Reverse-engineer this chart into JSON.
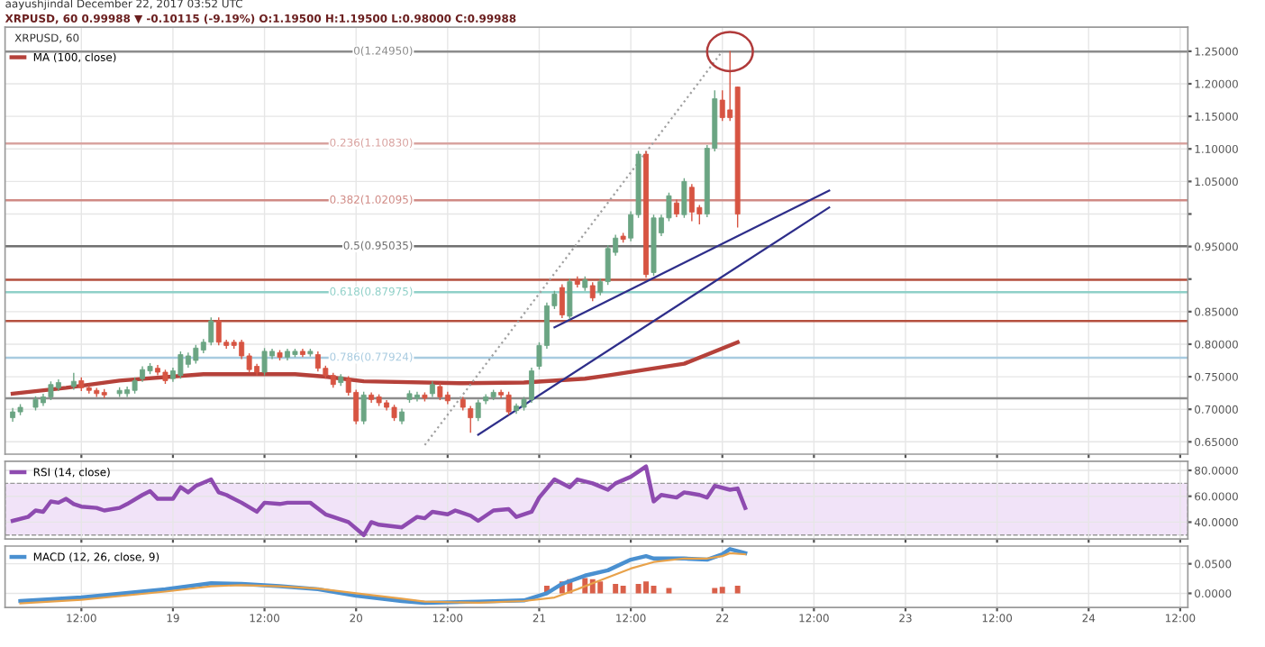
{
  "chart_data": [
    {
      "type": "candlestick",
      "title": "XRPUSD, 60 0.99988 ▼ -0.10115 (-9.19%) O:1.19500 H:1.19500 L:0.98000 C:0.99988",
      "subtitle": "aayushjindal December 22, 2017 03:52 UTC",
      "annotations": [
        "XRPUSD, 60"
      ],
      "x": [
        "2017-12-18T03:00",
        "2017-12-18T04:00",
        "2017-12-18T06:00",
        "2017-12-18T07:00",
        "2017-12-18T08:00",
        "2017-12-18T09:00",
        "2017-12-18T11:00",
        "2017-12-18T12:00",
        "2017-12-18T13:00",
        "2017-12-18T14:00",
        "2017-12-18T15:00",
        "2017-12-18T17:00",
        "2017-12-18T18:00",
        "2017-12-18T19:00",
        "2017-12-18T20:00",
        "2017-12-18T21:00",
        "2017-12-18T22:00",
        "2017-12-18T23:00",
        "2017-12-19T00:00",
        "2017-12-19T01:00",
        "2017-12-19T02:00",
        "2017-12-19T03:00",
        "2017-12-19T04:00",
        "2017-12-19T05:00",
        "2017-12-19T06:00",
        "2017-12-19T07:00",
        "2017-12-19T08:00",
        "2017-12-19T09:00",
        "2017-12-19T10:00",
        "2017-12-19T11:00",
        "2017-12-19T12:00",
        "2017-12-19T13:00",
        "2017-12-19T14:00",
        "2017-12-19T15:00",
        "2017-12-19T16:00",
        "2017-12-19T17:00",
        "2017-12-19T18:00",
        "2017-12-19T19:00",
        "2017-12-19T20:00",
        "2017-12-19T21:00",
        "2017-12-19T22:00",
        "2017-12-19T23:00",
        "2017-12-20T00:00",
        "2017-12-20T01:00",
        "2017-12-20T02:00",
        "2017-12-20T03:00",
        "2017-12-20T04:00",
        "2017-12-20T05:00",
        "2017-12-20T06:00",
        "2017-12-20T07:00",
        "2017-12-20T08:00",
        "2017-12-20T09:00",
        "2017-12-20T10:00",
        "2017-12-20T11:00",
        "2017-12-20T12:00",
        "2017-12-20T14:00",
        "2017-12-20T15:00",
        "2017-12-20T16:00",
        "2017-12-20T17:00",
        "2017-12-20T18:00",
        "2017-12-20T19:00",
        "2017-12-20T20:00",
        "2017-12-20T21:00",
        "2017-12-20T22:00",
        "2017-12-20T23:00",
        "2017-12-21T00:00",
        "2017-12-21T01:00",
        "2017-12-21T02:00",
        "2017-12-21T03:00",
        "2017-12-21T04:00",
        "2017-12-21T05:00",
        "2017-12-21T06:00",
        "2017-12-21T07:00",
        "2017-12-21T08:00",
        "2017-12-21T09:00",
        "2017-12-21T10:00",
        "2017-12-21T11:00",
        "2017-12-21T12:00",
        "2017-12-21T13:00",
        "2017-12-21T14:00",
        "2017-12-21T15:00",
        "2017-12-21T16:00",
        "2017-12-21T17:00",
        "2017-12-21T18:00",
        "2017-12-21T19:00",
        "2017-12-21T20:00",
        "2017-12-21T21:00",
        "2017-12-21T22:00",
        "2017-12-21T23:00",
        "2017-12-22T00:00",
        "2017-12-22T01:00",
        "2017-12-22T02:00"
      ],
      "ohlc": [
        [
          0.687,
          0.701,
          0.682,
          0.696
        ],
        [
          0.696,
          0.707,
          0.692,
          0.703
        ],
        [
          0.703,
          0.719,
          0.699,
          0.715
        ],
        [
          0.71,
          0.723,
          0.706,
          0.719
        ],
        [
          0.719,
          0.742,
          0.715,
          0.738
        ],
        [
          0.733,
          0.745,
          0.729,
          0.741
        ],
        [
          0.735,
          0.755,
          0.731,
          0.743
        ],
        [
          0.744,
          0.748,
          0.729,
          0.733
        ],
        [
          0.733,
          0.736,
          0.725,
          0.729
        ],
        [
          0.729,
          0.732,
          0.72,
          0.724
        ],
        [
          0.726,
          0.73,
          0.718,
          0.722
        ],
        [
          0.724,
          0.733,
          0.72,
          0.729
        ],
        [
          0.724,
          0.734,
          0.72,
          0.73
        ],
        [
          0.729,
          0.748,
          0.725,
          0.744
        ],
        [
          0.747,
          0.765,
          0.743,
          0.761
        ],
        [
          0.759,
          0.77,
          0.755,
          0.766
        ],
        [
          0.763,
          0.767,
          0.753,
          0.757
        ],
        [
          0.757,
          0.76,
          0.74,
          0.744
        ],
        [
          0.747,
          0.763,
          0.743,
          0.759
        ],
        [
          0.752,
          0.788,
          0.748,
          0.784
        ],
        [
          0.769,
          0.786,
          0.765,
          0.782
        ],
        [
          0.775,
          0.798,
          0.771,
          0.794
        ],
        [
          0.791,
          0.807,
          0.787,
          0.803
        ],
        [
          0.803,
          0.84,
          0.799,
          0.836
        ],
        [
          0.836,
          0.84,
          0.799,
          0.803
        ],
        [
          0.803,
          0.806,
          0.794,
          0.798
        ],
        [
          0.803,
          0.806,
          0.794,
          0.798
        ],
        [
          0.803,
          0.806,
          0.778,
          0.782
        ],
        [
          0.782,
          0.785,
          0.757,
          0.761
        ],
        [
          0.766,
          0.769,
          0.753,
          0.757
        ],
        [
          0.757,
          0.793,
          0.753,
          0.789
        ],
        [
          0.782,
          0.792,
          0.778,
          0.789
        ],
        [
          0.787,
          0.79,
          0.776,
          0.78
        ],
        [
          0.78,
          0.792,
          0.776,
          0.789
        ],
        [
          0.784,
          0.792,
          0.781,
          0.789
        ],
        [
          0.789,
          0.792,
          0.781,
          0.784
        ],
        [
          0.785,
          0.792,
          0.782,
          0.789
        ],
        [
          0.784,
          0.788,
          0.759,
          0.763
        ],
        [
          0.763,
          0.766,
          0.748,
          0.752
        ],
        [
          0.752,
          0.755,
          0.734,
          0.738
        ],
        [
          0.741,
          0.753,
          0.737,
          0.75
        ],
        [
          0.747,
          0.75,
          0.722,
          0.726
        ],
        [
          0.726,
          0.729,
          0.678,
          0.682
        ],
        [
          0.682,
          0.726,
          0.678,
          0.722
        ],
        [
          0.722,
          0.725,
          0.711,
          0.715
        ],
        [
          0.719,
          0.722,
          0.706,
          0.71
        ],
        [
          0.71,
          0.713,
          0.699,
          0.703
        ],
        [
          0.703,
          0.706,
          0.683,
          0.687
        ],
        [
          0.682,
          0.7,
          0.678,
          0.696
        ],
        [
          0.715,
          0.728,
          0.711,
          0.724
        ],
        [
          0.717,
          0.726,
          0.713,
          0.722
        ],
        [
          0.722,
          0.725,
          0.713,
          0.717
        ],
        [
          0.724,
          0.742,
          0.72,
          0.738
        ],
        [
          0.735,
          0.739,
          0.715,
          0.719
        ],
        [
          0.722,
          0.726,
          0.709,
          0.713
        ],
        [
          0.715,
          0.718,
          0.699,
          0.703
        ],
        [
          0.701,
          0.704,
          0.665,
          0.687
        ],
        [
          0.687,
          0.714,
          0.683,
          0.71
        ],
        [
          0.713,
          0.722,
          0.709,
          0.719
        ],
        [
          0.719,
          0.729,
          0.715,
          0.726
        ],
        [
          0.726,
          0.729,
          0.718,
          0.722
        ],
        [
          0.722,
          0.726,
          0.692,
          0.696
        ],
        [
          0.698,
          0.708,
          0.694,
          0.705
        ],
        [
          0.703,
          0.718,
          0.699,
          0.715
        ],
        [
          0.715,
          0.763,
          0.711,
          0.759
        ],
        [
          0.766,
          0.802,
          0.762,
          0.798
        ],
        [
          0.798,
          0.863,
          0.794,
          0.859
        ],
        [
          0.859,
          0.881,
          0.855,
          0.877
        ],
        [
          0.887,
          0.891,
          0.841,
          0.845
        ],
        [
          0.843,
          0.9,
          0.839,
          0.896
        ],
        [
          0.899,
          0.903,
          0.888,
          0.892
        ],
        [
          0.887,
          0.903,
          0.883,
          0.899
        ],
        [
          0.89,
          0.894,
          0.867,
          0.871
        ],
        [
          0.88,
          0.9,
          0.876,
          0.896
        ],
        [
          0.896,
          0.951,
          0.892,
          0.947
        ],
        [
          0.941,
          0.967,
          0.937,
          0.963
        ],
        [
          0.966,
          0.97,
          0.957,
          0.961
        ],
        [
          0.963,
          1.003,
          0.959,
          0.999
        ],
        [
          0.999,
          1.096,
          0.995,
          1.092
        ],
        [
          1.092,
          1.096,
          0.903,
          0.907
        ],
        [
          0.91,
          0.998,
          0.906,
          0.994
        ],
        [
          0.971,
          0.998,
          0.967,
          0.994
        ],
        [
          0.994,
          1.032,
          0.99,
          1.028
        ],
        [
          1.017,
          1.021,
          0.996,
          1.0
        ],
        [
          0.999,
          1.054,
          0.995,
          1.05
        ],
        [
          1.041,
          1.045,
          0.99,
          1.003
        ],
        [
          1.01,
          1.013,
          0.985,
          1.0
        ],
        [
          1.0,
          1.105,
          0.996,
          1.101
        ],
        [
          1.101,
          1.189,
          1.097,
          1.177
        ],
        [
          1.175,
          1.189,
          1.144,
          1.148
        ],
        [
          1.16,
          1.2495,
          1.144,
          1.148
        ],
        [
          1.195,
          1.195,
          0.98,
          0.99988
        ]
      ],
      "colors": [
        "#6ba583",
        "#6ba583",
        "#6ba583",
        "#6ba583",
        "#6ba583",
        "#6ba583",
        "#6ba583",
        "#d75442",
        "#d75442",
        "#d75442",
        "#d75442",
        "#6ba583",
        "#6ba583",
        "#6ba583",
        "#6ba583",
        "#6ba583",
        "#d75442",
        "#d75442",
        "#6ba583",
        "#6ba583",
        "#6ba583",
        "#6ba583",
        "#6ba583",
        "#6ba583",
        "#d75442",
        "#d75442",
        "#d75442",
        "#d75442",
        "#d75442",
        "#d75442",
        "#6ba583",
        "#6ba583",
        "#d75442",
        "#6ba583",
        "#6ba583",
        "#d75442",
        "#6ba583",
        "#d75442",
        "#d75442",
        "#d75442",
        "#6ba583",
        "#d75442",
        "#d75442",
        "#6ba583",
        "#d75442",
        "#d75442",
        "#d75442",
        "#d75442",
        "#6ba583",
        "#6ba583",
        "#6ba583",
        "#d75442",
        "#6ba583",
        "#d75442",
        "#d75442",
        "#d75442",
        "#d75442",
        "#6ba583",
        "#6ba583",
        "#6ba583",
        "#d75442",
        "#d75442",
        "#6ba583",
        "#6ba583",
        "#6ba583",
        "#6ba583",
        "#6ba583",
        "#6ba583",
        "#d75442",
        "#6ba583",
        "#d75442",
        "#6ba583",
        "#d75442",
        "#6ba583",
        "#6ba583",
        "#6ba583",
        "#d75442",
        "#6ba583",
        "#6ba583",
        "#d75442",
        "#6ba583",
        "#6ba583",
        "#6ba583",
        "#d75442",
        "#6ba583",
        "#d75442",
        "#d75442",
        "#6ba583",
        "#6ba583",
        "#d75442",
        "#d75442",
        "#d75442"
      ],
      "series": [
        {
          "name": "MA (100, close)",
          "type": "line",
          "color": "#b5413a",
          "x": [
            "2017-12-18T03:00",
            "2017-12-18T10:00",
            "2017-12-18T17:00",
            "2017-12-19T04:00",
            "2017-12-19T16:00",
            "2017-12-19T20:00",
            "2017-12-20T01:00",
            "2017-12-20T14:00",
            "2017-12-20T22:00",
            "2017-12-21T06:00",
            "2017-12-21T09:00",
            "2017-12-21T19:00",
            "2017-12-22T02:00"
          ],
          "values": [
            0.724,
            0.733,
            0.744,
            0.754,
            0.754,
            0.75,
            0.743,
            0.74,
            0.741,
            0.747,
            0.752,
            0.77,
            0.803
          ]
        },
        {
          "type": "line",
          "color": "#2e2e8a",
          "x": [
            "2017-12-21T02:00",
            "2017-12-22T14:00"
          ],
          "values": [
            0.826,
            1.036
          ]
        },
        {
          "type": "line",
          "color": "#2e2e8a",
          "x": [
            "2017-12-20T16:00",
            "2017-12-22T14:00"
          ],
          "values": [
            0.661,
            1.01
          ]
        },
        {
          "type": "line",
          "color": "#a0a0a0",
          "line_style": "dotted",
          "x": [
            "2017-12-20T09:00",
            "2017-12-22T00:00"
          ],
          "values": [
            0.645,
            1.25
          ]
        }
      ],
      "ref_lines": [
        {
          "axis": "y",
          "value": 1.2495,
          "label": "0(1.24950)",
          "color": "#8c8c8c"
        },
        {
          "axis": "y",
          "value": 1.1083,
          "label": "0.236(1.10830)",
          "color": "#d9a3a0"
        },
        {
          "axis": "y",
          "value": 1.02095,
          "label": "0.382(1.02095)",
          "color": "#d08a85"
        },
        {
          "axis": "y",
          "value": 0.95035,
          "label": "0.5(0.95035)",
          "color": "#707070"
        },
        {
          "axis": "y",
          "value": 0.87975,
          "label": "0.618(0.87975)",
          "color": "#8fd0c8"
        },
        {
          "axis": "y",
          "value": 0.77924,
          "label": "0.786(0.77924)",
          "color": "#a8cbe0"
        },
        {
          "axis": "y",
          "value": 0.717,
          "color": "#8c8c8c"
        },
        {
          "axis": "y",
          "value": 0.899,
          "color": "#b5503f"
        },
        {
          "axis": "y",
          "value": 0.8355,
          "color": "#b5503f"
        }
      ],
      "xlim": [
        "2017-12-18T02:00",
        "2017-12-24T13:00"
      ],
      "ylim": [
        0.631,
        1.287
      ],
      "xticks": [
        {
          "value": "2017-12-18T12:00",
          "label": null
        },
        {
          "value": "2017-12-19",
          "label": null
        },
        {
          "value": "2017-12-19T12:00",
          "label": null
        },
        {
          "value": "2017-12-20",
          "label": null
        },
        {
          "value": "2017-12-20T12:00",
          "label": null
        },
        {
          "value": "2017-12-21",
          "label": null
        },
        {
          "value": "2017-12-21T12:00",
          "label": null
        },
        {
          "value": "2017-12-22",
          "label": null
        },
        {
          "value": "2017-12-22T12:00",
          "label": null
        },
        {
          "value": "2017-12-23",
          "label": null
        },
        {
          "value": "2017-12-23T12:00",
          "label": null
        },
        {
          "value": "2017-12-24",
          "label": null
        },
        {
          "value": "2017-12-24T12:00",
          "label": null
        }
      ],
      "yticks": [
        {
          "value": 0.65,
          "label": "0.65000"
        },
        {
          "value": 0.7,
          "label": "0.70000"
        },
        {
          "value": 0.75,
          "label": "0.75000"
        },
        {
          "value": 0.8,
          "label": "0.80000"
        },
        {
          "value": 0.85,
          "label": "0.85000"
        },
        {
          "value": 0.9,
          "label": null
        },
        {
          "value": 0.95,
          "label": "0.95000"
        },
        {
          "value": 1.0,
          "label": null
        },
        {
          "value": 1.05,
          "label": "1.05000"
        },
        {
          "value": 1.1,
          "label": "1.10000"
        },
        {
          "value": 1.15,
          "label": "1.15000"
        },
        {
          "value": 1.2,
          "label": "1.20000"
        },
        {
          "value": 1.25,
          "label": "1.25000"
        }
      ],
      "grid": true,
      "legend": "top left",
      "tick_labels": "y"
    },
    {
      "type": "line",
      "series": [
        {
          "name": "RSI (14, close)",
          "color": "#8e4bb0",
          "x": [
            "2017-12-18T03:00",
            "2017-12-18T05:00",
            "2017-12-18T06:00",
            "2017-12-18T07:00",
            "2017-12-18T08:00",
            "2017-12-18T09:00",
            "2017-12-18T10:00",
            "2017-12-18T11:00",
            "2017-12-18T12:00",
            "2017-12-18T14:00",
            "2017-12-18T15:00",
            "2017-12-18T17:00",
            "2017-12-18T18:00",
            "2017-12-18T20:00",
            "2017-12-18T21:00",
            "2017-12-18T22:00",
            "2017-12-19T00:00",
            "2017-12-19T01:00",
            "2017-12-19T02:00",
            "2017-12-19T03:00",
            "2017-12-19T05:00",
            "2017-12-19T06:00",
            "2017-12-19T07:00",
            "2017-12-19T09:00",
            "2017-12-19T11:00",
            "2017-12-19T12:00",
            "2017-12-19T14:00",
            "2017-12-19T15:00",
            "2017-12-19T17:00",
            "2017-12-19T18:00",
            "2017-12-19T20:00",
            "2017-12-19T21:00",
            "2017-12-19T23:00",
            "2017-12-20T01:00",
            "2017-12-20T02:00",
            "2017-12-20T03:00",
            "2017-12-20T06:00",
            "2017-12-20T08:00",
            "2017-12-20T09:00",
            "2017-12-20T10:00",
            "2017-12-20T12:00",
            "2017-12-20T13:00",
            "2017-12-20T15:00",
            "2017-12-20T16:00",
            "2017-12-20T18:00",
            "2017-12-20T20:00",
            "2017-12-20T21:00",
            "2017-12-20T23:00",
            "2017-12-21T00:00",
            "2017-12-21T02:00",
            "2017-12-21T04:00",
            "2017-12-21T05:00",
            "2017-12-21T07:00",
            "2017-12-21T09:00",
            "2017-12-21T10:00",
            "2017-12-21T12:00",
            "2017-12-21T14:00",
            "2017-12-21T15:00",
            "2017-12-21T16:00",
            "2017-12-21T18:00",
            "2017-12-21T19:00",
            "2017-12-21T21:00",
            "2017-12-21T22:00",
            "2017-12-21T23:00",
            "2017-12-22T01:00",
            "2017-12-22T02:00",
            "2017-12-22T03:00"
          ],
          "values": [
            41,
            44,
            49,
            48,
            56,
            55,
            58,
            54,
            52,
            51,
            49,
            51,
            54,
            61,
            64,
            58,
            58,
            67,
            63,
            68,
            73,
            63,
            61,
            55,
            48,
            55,
            54,
            55,
            55,
            55,
            46,
            44,
            40,
            30,
            40,
            38,
            36,
            44,
            43,
            48,
            46,
            49,
            45,
            41,
            49,
            50,
            44,
            48,
            59,
            73,
            67,
            73,
            70,
            65,
            70,
            75,
            83,
            56,
            61,
            59,
            63,
            61,
            59,
            68,
            65,
            66,
            51
          ]
        }
      ],
      "bands": [
        {
          "axis": "y",
          "from": 30,
          "to": 70,
          "color": "#f1e3f8"
        }
      ],
      "xlim": [
        "2017-12-18T02:00",
        "2017-12-24T13:00"
      ],
      "ylim": [
        27,
        87
      ],
      "xticks": [
        {
          "value": "2017-12-18T12:00",
          "label": null
        },
        {
          "value": "2017-12-19",
          "label": null
        },
        {
          "value": "2017-12-19T12:00",
          "label": null
        },
        {
          "value": "2017-12-20",
          "label": null
        },
        {
          "value": "2017-12-20T12:00",
          "label": null
        },
        {
          "value": "2017-12-21",
          "label": null
        },
        {
          "value": "2017-12-21T12:00",
          "label": null
        },
        {
          "value": "2017-12-22",
          "label": null
        },
        {
          "value": "2017-12-22T12:00",
          "label": null
        },
        {
          "value": "2017-12-23",
          "label": null
        },
        {
          "value": "2017-12-23T12:00",
          "label": null
        },
        {
          "value": "2017-12-24",
          "label": null
        },
        {
          "value": "2017-12-24T12:00",
          "label": null
        }
      ],
      "yticks": [
        {
          "value": 40,
          "label": "40.0000"
        },
        {
          "value": 60,
          "label": "60.0000"
        },
        {
          "value": 80,
          "label": "80.0000"
        }
      ],
      "grid": true,
      "legend": "top left",
      "tick_labels": "y"
    },
    {
      "type": "line",
      "series": [
        {
          "name": "MACD (12, 26, close, 9)",
          "color": "#4a90d0",
          "x": [
            "2017-12-18T04:00",
            "2017-12-18T12:00",
            "2017-12-18T23:00",
            "2017-12-19T05:00",
            "2017-12-19T09:00",
            "2017-12-19T14:00",
            "2017-12-19T19:00",
            "2017-12-20T00:00",
            "2017-12-20T06:00",
            "2017-12-20T09:00",
            "2017-12-20T16:00",
            "2017-12-20T22:00",
            "2017-12-21T01:00",
            "2017-12-21T03:00",
            "2017-12-21T06:00",
            "2017-12-21T09:00",
            "2017-12-21T12:00",
            "2017-12-21T14:00",
            "2017-12-21T15:00",
            "2017-12-21T19:00",
            "2017-12-21T22:00",
            "2017-12-22T00:00",
            "2017-12-22T01:00",
            "2017-12-22T03:00"
          ],
          "values": [
            -0.013,
            -0.007,
            0.007,
            0.017,
            0.016,
            0.012,
            0.007,
            -0.004,
            -0.013,
            -0.016,
            -0.014,
            -0.012,
            0,
            0.016,
            0.03,
            0.039,
            0.057,
            0.063,
            0.059,
            0.059,
            0.057,
            0.066,
            0.075,
            0.068
          ]
        },
        {
          "color": "#e8a24a",
          "x": [
            "2017-12-18T04:00",
            "2017-12-18T12:00",
            "2017-12-18T23:00",
            "2017-12-19T05:00",
            "2017-12-19T09:00",
            "2017-12-19T14:00",
            "2017-12-19T19:00",
            "2017-12-20T00:00",
            "2017-12-20T06:00",
            "2017-12-20T09:00",
            "2017-12-20T16:00",
            "2017-12-20T22:00",
            "2017-12-21T02:00",
            "2017-12-21T05:00",
            "2017-12-21T08:00",
            "2017-12-21T12:00",
            "2017-12-21T15:00",
            "2017-12-21T19:00",
            "2017-12-21T22:00",
            "2017-12-22T00:00",
            "2017-12-22T01:00",
            "2017-12-22T03:00"
          ],
          "values": [
            -0.017,
            -0.011,
            0.003,
            0.012,
            0.014,
            0.012,
            0.008,
            0,
            -0.009,
            -0.014,
            -0.016,
            -0.013,
            -0.007,
            0.007,
            0.022,
            0.042,
            0.053,
            0.059,
            0.059,
            0.063,
            0.068,
            0.066
          ]
        },
        {
          "type": "bar",
          "color": "#d9604a",
          "x": [
            "2017-12-21T01:00",
            "2017-12-21T03:00",
            "2017-12-21T04:00",
            "2017-12-21T06:00",
            "2017-12-21T07:00",
            "2017-12-21T08:00",
            "2017-12-21T10:00",
            "2017-12-21T11:00",
            "2017-12-21T13:00",
            "2017-12-21T14:00",
            "2017-12-21T15:00",
            "2017-12-21T17:00",
            "2017-12-21T23:00",
            "2017-12-22T00:00",
            "2017-12-22T02:00"
          ],
          "values": [
            0.013,
            0.02,
            0.024,
            0.026,
            0.024,
            0.02,
            0.016,
            0.013,
            0.016,
            0.02,
            0.013,
            0.009,
            0.009,
            0.011,
            0.013
          ]
        }
      ],
      "xlim": [
        "2017-12-18T02:00",
        "2017-12-24T13:00"
      ],
      "ylim": [
        -0.024,
        0.08
      ],
      "xticks": [
        {
          "value": "2017-12-18T12:00",
          "label": "12:00"
        },
        {
          "value": "2017-12-19",
          "label": "19"
        },
        {
          "value": "2017-12-19T12:00",
          "label": "12:00"
        },
        {
          "value": "2017-12-20",
          "label": "20"
        },
        {
          "value": "2017-12-20T12:00",
          "label": "12:00"
        },
        {
          "value": "2017-12-21",
          "label": "21"
        },
        {
          "value": "2017-12-21T12:00",
          "label": "12:00"
        },
        {
          "value": "2017-12-22",
          "label": "22"
        },
        {
          "value": "2017-12-22T12:00",
          "label": "12:00"
        },
        {
          "value": "2017-12-23",
          "label": "23"
        },
        {
          "value": "2017-12-23T12:00",
          "label": "12:00"
        },
        {
          "value": "2017-12-24",
          "label": "24"
        },
        {
          "value": "2017-12-24T12:00",
          "label": "12:00"
        }
      ],
      "yticks": [
        {
          "value": 0,
          "label": "0.0000"
        },
        {
          "value": 0.05,
          "label": "0.0500"
        }
      ],
      "grid": true,
      "legend": "top left"
    }
  ]
}
